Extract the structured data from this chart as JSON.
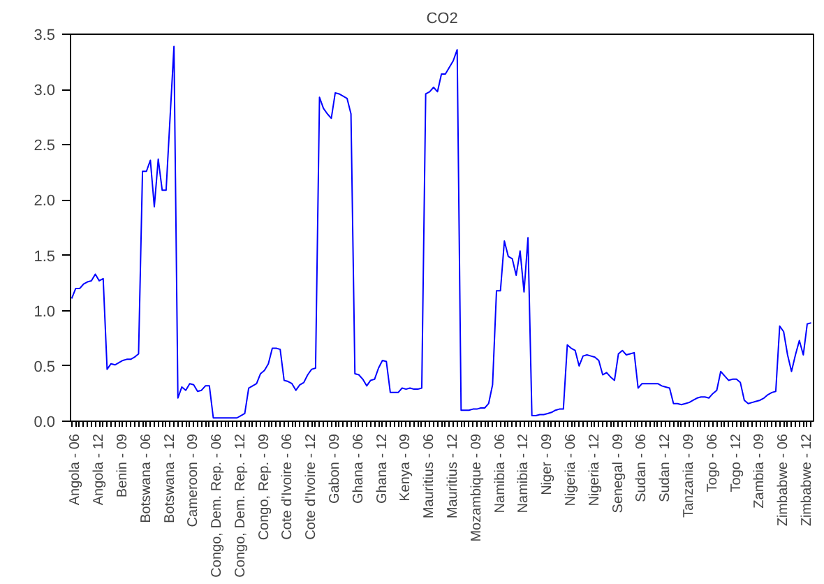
{
  "chart_data": {
    "type": "line",
    "title": "CO2",
    "categories": [
      null,
      "Angola - 06",
      null,
      null,
      null,
      null,
      null,
      "Angola - 12",
      null,
      null,
      null,
      null,
      null,
      "Benin - 09",
      null,
      null,
      null,
      null,
      null,
      "Botswana - 06",
      null,
      null,
      null,
      null,
      null,
      "Botswana - 12",
      null,
      null,
      null,
      null,
      null,
      "Cameroon - 09",
      null,
      null,
      null,
      null,
      null,
      "Congo, Dem. Rep. - 06",
      null,
      null,
      null,
      null,
      null,
      "Congo, Dem. Rep. - 12",
      null,
      null,
      null,
      null,
      null,
      "Congo, Rep. - 09",
      null,
      null,
      null,
      null,
      null,
      "Cote d'Ivoire - 06",
      null,
      null,
      null,
      null,
      null,
      "Cote d'Ivoire - 12",
      null,
      null,
      null,
      null,
      null,
      "Gabon - 09",
      null,
      null,
      null,
      null,
      null,
      "Ghana - 06",
      null,
      null,
      null,
      null,
      null,
      "Ghana - 12",
      null,
      null,
      null,
      null,
      null,
      "Kenya - 09",
      null,
      null,
      null,
      null,
      null,
      "Mauritius - 06",
      null,
      null,
      null,
      null,
      null,
      "Mauritius - 12",
      null,
      null,
      null,
      null,
      null,
      "Mozambique - 09",
      null,
      null,
      null,
      null,
      null,
      "Namibia - 06",
      null,
      null,
      null,
      null,
      null,
      "Namibia - 12",
      null,
      null,
      null,
      null,
      null,
      "Niger - 09",
      null,
      null,
      null,
      null,
      null,
      "Nigeria - 06",
      null,
      null,
      null,
      null,
      null,
      "Nigeria - 12",
      null,
      null,
      null,
      null,
      null,
      "Senegal - 09",
      null,
      null,
      null,
      null,
      null,
      "Sudan - 06",
      null,
      null,
      null,
      null,
      null,
      "Sudan - 12",
      null,
      null,
      null,
      null,
      null,
      "Tanzania - 09",
      null,
      null,
      null,
      null,
      null,
      "Togo - 06",
      null,
      null,
      null,
      null,
      null,
      "Togo - 12",
      null,
      null,
      null,
      null,
      null,
      "Zambia - 09",
      null,
      null,
      null,
      null,
      null,
      "Zimbabwe - 06",
      null,
      null,
      null,
      null,
      null,
      "Zimbabwe - 12",
      null
    ],
    "values": [
      1.11,
      1.2,
      1.2,
      1.24,
      1.26,
      1.27,
      1.33,
      1.27,
      1.29,
      0.47,
      0.52,
      0.51,
      0.53,
      0.55,
      0.56,
      0.56,
      0.58,
      0.61,
      2.26,
      2.26,
      2.36,
      1.94,
      2.37,
      2.09,
      2.09,
      2.74,
      3.39,
      0.21,
      0.31,
      0.28,
      0.34,
      0.33,
      0.27,
      0.28,
      0.32,
      0.32,
      0.03,
      0.03,
      0.03,
      0.03,
      0.03,
      0.03,
      0.03,
      0.05,
      0.07,
      0.3,
      0.32,
      0.34,
      0.43,
      0.46,
      0.52,
      0.66,
      0.66,
      0.65,
      0.37,
      0.36,
      0.34,
      0.28,
      0.33,
      0.35,
      0.42,
      0.47,
      0.48,
      2.93,
      2.83,
      2.78,
      2.74,
      2.97,
      2.96,
      2.94,
      2.92,
      2.78,
      0.43,
      0.42,
      0.38,
      0.32,
      0.37,
      0.38,
      0.48,
      0.55,
      0.54,
      0.26,
      0.26,
      0.26,
      0.3,
      0.29,
      0.3,
      0.29,
      0.29,
      0.3,
      2.96,
      2.98,
      3.02,
      2.98,
      3.14,
      3.14,
      3.2,
      3.26,
      3.36,
      0.1,
      0.1,
      0.1,
      0.11,
      0.11,
      0.12,
      0.12,
      0.16,
      0.33,
      1.18,
      1.18,
      1.63,
      1.49,
      1.47,
      1.32,
      1.54,
      1.17,
      1.66,
      0.05,
      0.05,
      0.06,
      0.06,
      0.07,
      0.08,
      0.1,
      0.11,
      0.11,
      0.69,
      0.66,
      0.64,
      0.5,
      0.59,
      0.6,
      0.59,
      0.58,
      0.55,
      0.42,
      0.44,
      0.4,
      0.37,
      0.61,
      0.64,
      0.6,
      0.61,
      0.62,
      0.3,
      0.34,
      0.34,
      0.34,
      0.34,
      0.34,
      0.32,
      0.31,
      0.3,
      0.16,
      0.16,
      0.15,
      0.16,
      0.17,
      0.19,
      0.21,
      0.22,
      0.22,
      0.21,
      0.25,
      0.28,
      0.45,
      0.41,
      0.37,
      0.38,
      0.38,
      0.35,
      0.19,
      0.16,
      0.17,
      0.18,
      0.19,
      0.21,
      0.24,
      0.26,
      0.27,
      0.86,
      0.81,
      0.6,
      0.45,
      0.6,
      0.73,
      0.6,
      0.88,
      0.89
    ],
    "color": "#0000ff",
    "ylim": [
      0,
      3.5
    ],
    "yticks": [
      {
        "value": 0,
        "label": "0.0"
      },
      {
        "value": 0.5,
        "label": "0.5"
      },
      {
        "value": 1,
        "label": "1.0"
      },
      {
        "value": 1.5,
        "label": "1.5"
      },
      {
        "value": 2,
        "label": "2.0"
      },
      {
        "value": 2.5,
        "label": "2.5"
      },
      {
        "value": 3,
        "label": "3.0"
      },
      {
        "value": 3.5,
        "label": "3.5"
      }
    ],
    "grid": false
  }
}
